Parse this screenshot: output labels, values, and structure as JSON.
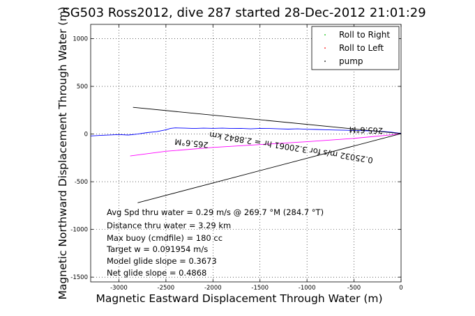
{
  "chart_data": {
    "type": "line",
    "title": "SG503 Ross2012, dive 287 started 28-Dec-2012 21:01:29",
    "xlabel": "Magnetic Eastward Displacement Through Water (m)",
    "ylabel": "Magnetic Northward Displacement Through Water (m)",
    "xlim": [
      -3300,
      0
    ],
    "ylim": [
      -1550,
      1150
    ],
    "xticks": [
      -3000,
      -2500,
      -2000,
      -1500,
      -1000,
      -500,
      0
    ],
    "xtick_labels": [
      "-3000",
      "-2500",
      "-2000",
      "-1500",
      "-1000",
      "-500",
      "0"
    ],
    "yticks": [
      -1500,
      -1000,
      -500,
      0,
      500,
      1000
    ],
    "ytick_labels": [
      "-1500",
      "-1000",
      "-500",
      "0",
      "500",
      "1000"
    ],
    "grid": true,
    "legend_position": "top-right",
    "legend": [
      {
        "label": "Roll to Right",
        "color": "#00c000"
      },
      {
        "label": "Roll to Left",
        "color": "#ff0000"
      },
      {
        "label": "pump",
        "color": "#000000"
      }
    ],
    "series": [
      {
        "color": "#0000ff",
        "x": [
          -3300,
          -3200,
          -3000,
          -2900,
          -2800,
          -2700,
          -2600,
          -2500,
          -2450,
          -2400,
          -2300,
          -2200,
          -2100,
          -2000,
          -1900,
          -1800,
          -1700,
          -1600,
          -1500,
          -1400,
          -1300,
          -1200,
          -1100,
          -1000,
          -900,
          -800,
          -700,
          -600,
          -500,
          -400,
          -300,
          -200,
          -100,
          -30,
          0
        ],
        "y": [
          -20,
          -15,
          -5,
          -10,
          0,
          15,
          25,
          45,
          60,
          65,
          62,
          58,
          62,
          60,
          62,
          58,
          60,
          55,
          60,
          58,
          55,
          52,
          55,
          50,
          48,
          45,
          42,
          40,
          38,
          35,
          32,
          28,
          20,
          10,
          8
        ]
      },
      {
        "color": "#ff00ff",
        "x": [
          -2880,
          -2500,
          -2000,
          -1500,
          -1000,
          -500,
          -100,
          0
        ],
        "y": [
          -230,
          -180,
          -140,
          -110,
          -80,
          -45,
          -8,
          5
        ]
      },
      {
        "color": "#000000",
        "x": [
          -2850,
          0
        ],
        "y": [
          280,
          5
        ]
      },
      {
        "color": "#000000",
        "x": [
          -2800,
          0
        ],
        "y": [
          -720,
          5
        ]
      }
    ],
    "annotations_flipped": [
      "265.6°M",
      "0.25032 m/s for 3.20061 hr = 2.8842 km",
      "265.6°M"
    ],
    "stats": [
      "Avg Spd thru water =  0.29 m/s @ 269.7   °M (284.7 °T)",
      "Distance thru water =  3.29 km",
      "Max buoy (cmdfile) = 180 cc",
      "Target w = 0.091954 m/s",
      "Model glide slope = 0.3673",
      "Net glide slope = 0.4868"
    ]
  }
}
